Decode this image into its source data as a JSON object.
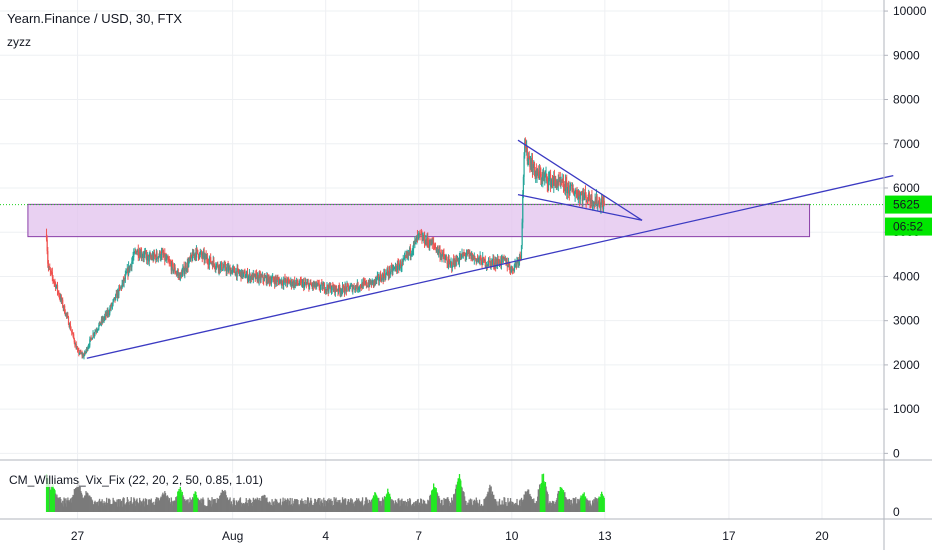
{
  "header": {
    "symbol_title": "Yearn.Finance / USD, 30, FTX",
    "study_label": "zyzz"
  },
  "indicator": {
    "label": "CM_Williams_Vix_Fix (22, 20, 2, 50, 0.85, 1.01)",
    "axis_label": "0"
  },
  "price_badges": {
    "last_price": "5625",
    "countdown": "06:52"
  },
  "colors": {
    "up": "#26a69a",
    "down": "#ef5350",
    "trendline": "#3b3ac2",
    "zone_fill": "#e1c2ee",
    "zone_border": "#8a3fa8",
    "price_line": "#1fd11f",
    "badge": "#00e600",
    "vix_gray": "#7b7b7b",
    "vix_green": "#22e822",
    "grid": "#eef0f3"
  },
  "chart_data": {
    "type": "candlestick",
    "title": "Yearn.Finance / USD, 30, FTX",
    "timeframe": "30",
    "exchange": "FTX",
    "y_ticks": [
      0,
      1000,
      2000,
      3000,
      4000,
      5000,
      6000,
      7000,
      8000,
      9000,
      10000
    ],
    "x_ticks": [
      {
        "label": "27",
        "day": 27
      },
      {
        "label": "Aug",
        "day": 32
      },
      {
        "label": "4",
        "day": 35
      },
      {
        "label": "7",
        "day": 38
      },
      {
        "label": "10",
        "day": 41
      },
      {
        "label": "13",
        "day": 44
      },
      {
        "label": "17",
        "day": 48
      },
      {
        "label": "20",
        "day": 51
      }
    ],
    "ylim": [
      -150,
      10250
    ],
    "xlim": [
      24.5,
      53.0
    ],
    "grid": true,
    "last_price": 5625,
    "anchors": [
      {
        "day": 26.0,
        "price": 4950
      },
      {
        "day": 26.05,
        "price": 4200
      },
      {
        "day": 26.3,
        "price": 3800
      },
      {
        "day": 26.7,
        "price": 3000
      },
      {
        "day": 27.0,
        "price": 2300
      },
      {
        "day": 27.2,
        "price": 2200
      },
      {
        "day": 27.5,
        "price": 2700
      },
      {
        "day": 28.0,
        "price": 3200
      },
      {
        "day": 28.5,
        "price": 3900
      },
      {
        "day": 28.9,
        "price": 4600
      },
      {
        "day": 29.3,
        "price": 4400
      },
      {
        "day": 29.7,
        "price": 4500
      },
      {
        "day": 30.3,
        "price": 4000
      },
      {
        "day": 30.8,
        "price": 4550
      },
      {
        "day": 31.5,
        "price": 4250
      },
      {
        "day": 32.5,
        "price": 4000
      },
      {
        "day": 33.5,
        "price": 3900
      },
      {
        "day": 34.5,
        "price": 3800
      },
      {
        "day": 35.5,
        "price": 3700
      },
      {
        "day": 36.5,
        "price": 3850
      },
      {
        "day": 37.5,
        "price": 4300
      },
      {
        "day": 38.0,
        "price": 4900
      },
      {
        "day": 38.5,
        "price": 4700
      },
      {
        "day": 39.0,
        "price": 4250
      },
      {
        "day": 39.5,
        "price": 4500
      },
      {
        "day": 40.2,
        "price": 4300
      },
      {
        "day": 40.8,
        "price": 4350
      },
      {
        "day": 41.0,
        "price": 4150
      },
      {
        "day": 41.3,
        "price": 4500
      },
      {
        "day": 41.4,
        "price": 6900
      },
      {
        "day": 41.8,
        "price": 6300
      },
      {
        "day": 42.5,
        "price": 6100
      },
      {
        "day": 43.2,
        "price": 5850
      },
      {
        "day": 43.7,
        "price": 5700
      },
      {
        "day": 44.0,
        "price": 5625
      }
    ],
    "drawings": {
      "resistance_zone": {
        "from_day": 25.4,
        "to_day": 50.6,
        "low": 4900,
        "high": 5630
      },
      "ascending_trendline": [
        {
          "day": 27.3,
          "price": 2150
        },
        {
          "day": 53.3,
          "price": 6280
        }
      ],
      "channel_top": [
        {
          "day": 41.2,
          "price": 7080
        },
        {
          "day": 45.2,
          "price": 5270
        }
      ],
      "channel_bottom": [
        {
          "day": 41.2,
          "price": 5850
        },
        {
          "day": 45.2,
          "price": 5270
        }
      ]
    },
    "indicator_series": {
      "name": "CM_Williams_Vix_Fix",
      "params": "22, 20, 2, 50, 0.85, 1.01",
      "spikes": [
        {
          "day": 26.0,
          "value": 1.0,
          "green": true
        },
        {
          "day": 26.2,
          "value": 0.7,
          "green": true
        },
        {
          "day": 27.0,
          "value": 0.8,
          "green": false
        },
        {
          "day": 27.3,
          "value": 0.55,
          "green": false
        },
        {
          "day": 29.8,
          "value": 0.55,
          "green": false
        },
        {
          "day": 30.3,
          "value": 0.6,
          "green": true
        },
        {
          "day": 30.8,
          "value": 0.5,
          "green": true
        },
        {
          "day": 31.7,
          "value": 0.6,
          "green": false
        },
        {
          "day": 33.0,
          "value": 0.45,
          "green": false
        },
        {
          "day": 36.6,
          "value": 0.5,
          "green": true
        },
        {
          "day": 37.0,
          "value": 0.55,
          "green": true
        },
        {
          "day": 38.5,
          "value": 0.7,
          "green": true
        },
        {
          "day": 39.3,
          "value": 0.9,
          "green": true
        },
        {
          "day": 40.3,
          "value": 0.65,
          "green": false
        },
        {
          "day": 41.5,
          "value": 0.6,
          "green": false
        },
        {
          "day": 42.0,
          "value": 0.95,
          "green": true
        },
        {
          "day": 42.6,
          "value": 0.7,
          "green": true
        },
        {
          "day": 43.3,
          "value": 0.5,
          "green": true
        },
        {
          "day": 43.9,
          "value": 0.5,
          "green": true
        }
      ]
    }
  }
}
